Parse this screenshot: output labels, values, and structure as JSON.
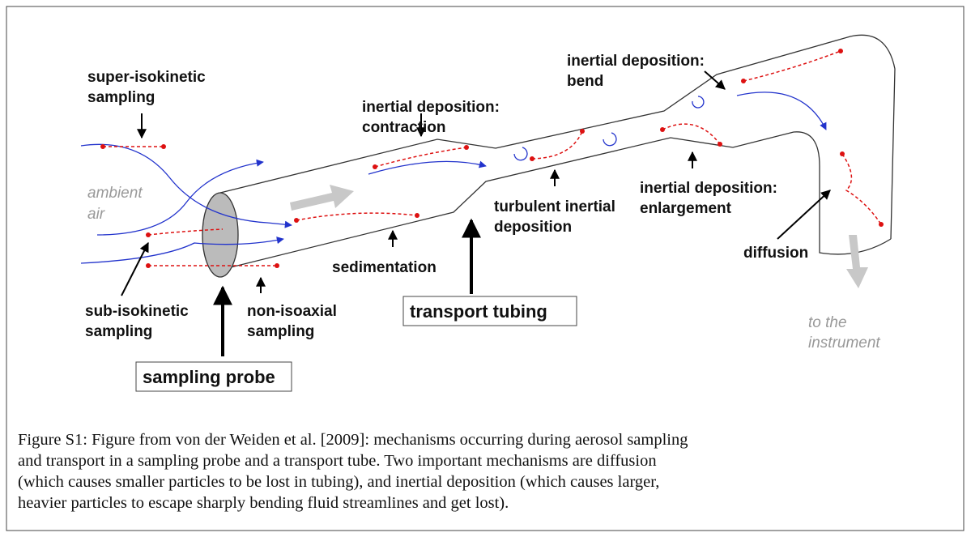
{
  "labels": [
    {
      "lines": [
        "super-isokinetic",
        "sampling"
      ]
    },
    {
      "lines": [
        "ambient",
        "air"
      ]
    },
    {
      "lines": [
        "inertial deposition:",
        "contraction"
      ]
    },
    {
      "lines": [
        "inertial deposition:",
        "bend"
      ]
    },
    {
      "lines": [
        "turbulent inertial",
        "deposition"
      ]
    },
    {
      "lines": [
        "inertial deposition:",
        "enlargement"
      ]
    },
    {
      "lines": [
        "sedimentation"
      ]
    },
    {
      "lines": [
        "sub-isokinetic",
        "sampling"
      ]
    },
    {
      "lines": [
        "non-isoaxial",
        "sampling"
      ]
    },
    {
      "lines": [
        "transport tubing"
      ]
    },
    {
      "lines": [
        "sampling probe"
      ]
    },
    {
      "lines": [
        "diffusion"
      ]
    },
    {
      "lines": [
        "to the",
        "instrument"
      ]
    }
  ],
  "caption": {
    "lines": [
      "Figure S1: Figure from von der Weiden et al. [2009]: mechanisms occurring during aerosol sampling",
      "and transport in a sampling probe and a transport tube. Two important mechanisms are diffusion",
      "(which causes smaller particles to be lost in tubing), and inertial deposition (which causes larger,",
      "heavier particles to escape sharply bending fluid streamlines and get lost)."
    ]
  }
}
